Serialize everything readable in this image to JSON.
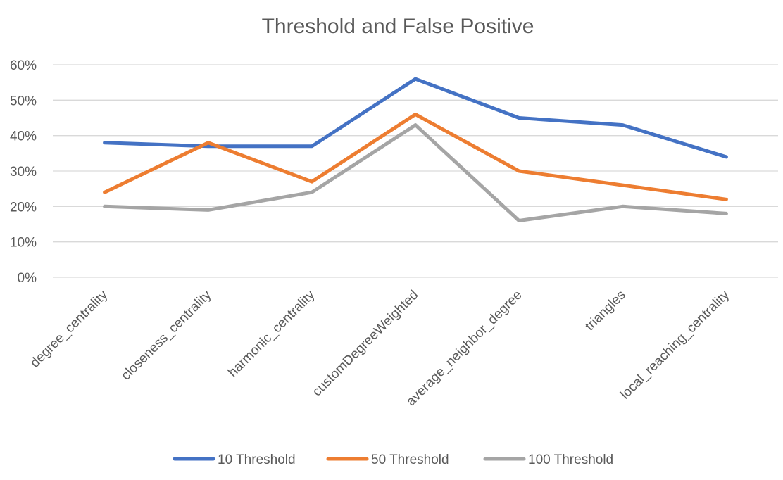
{
  "chart_data": {
    "type": "line",
    "title": "Threshold and False Positive",
    "categories": [
      "degree_centrality",
      "closeness_centrality",
      "harmonic_centrality",
      "customDegreeWeighted",
      "average_neighbor_degree",
      "triangles",
      "local_reaching_centrality"
    ],
    "series": [
      {
        "name": "10 Threshold",
        "color": "#4472c4",
        "values": [
          0.38,
          0.37,
          0.37,
          0.56,
          0.45,
          0.43,
          0.34
        ]
      },
      {
        "name": "50 Threshold",
        "color": "#ed7d31",
        "values": [
          0.24,
          0.38,
          0.27,
          0.46,
          0.3,
          0.26,
          0.22
        ]
      },
      {
        "name": "100 Threshold",
        "color": "#a5a5a5",
        "values": [
          0.2,
          0.19,
          0.24,
          0.43,
          0.16,
          0.2,
          0.18
        ]
      }
    ],
    "ylim": [
      0,
      0.6
    ],
    "y_ticks": [
      "0%",
      "10%",
      "20%",
      "30%",
      "40%",
      "50%",
      "60%"
    ],
    "y_tick_values": [
      0,
      0.1,
      0.2,
      0.3,
      0.4,
      0.5,
      0.6
    ],
    "grid": true,
    "legend_position": "bottom"
  }
}
